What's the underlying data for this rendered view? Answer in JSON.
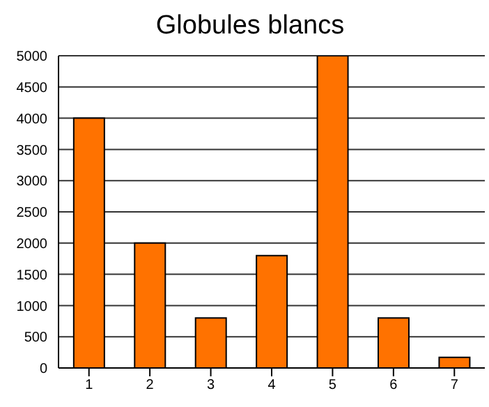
{
  "chart_data": {
    "type": "bar",
    "title": "Globules blancs",
    "categories": [
      "1",
      "2",
      "3",
      "4",
      "5",
      "6",
      "7"
    ],
    "values": [
      4000,
      2000,
      800,
      1800,
      5000,
      800,
      170
    ],
    "color": "#ff7200",
    "ylim": [
      0,
      5000
    ],
    "yticks": [
      0,
      500,
      1000,
      1500,
      2000,
      2500,
      3000,
      3500,
      4000,
      4500,
      5000
    ],
    "grid": "y"
  }
}
